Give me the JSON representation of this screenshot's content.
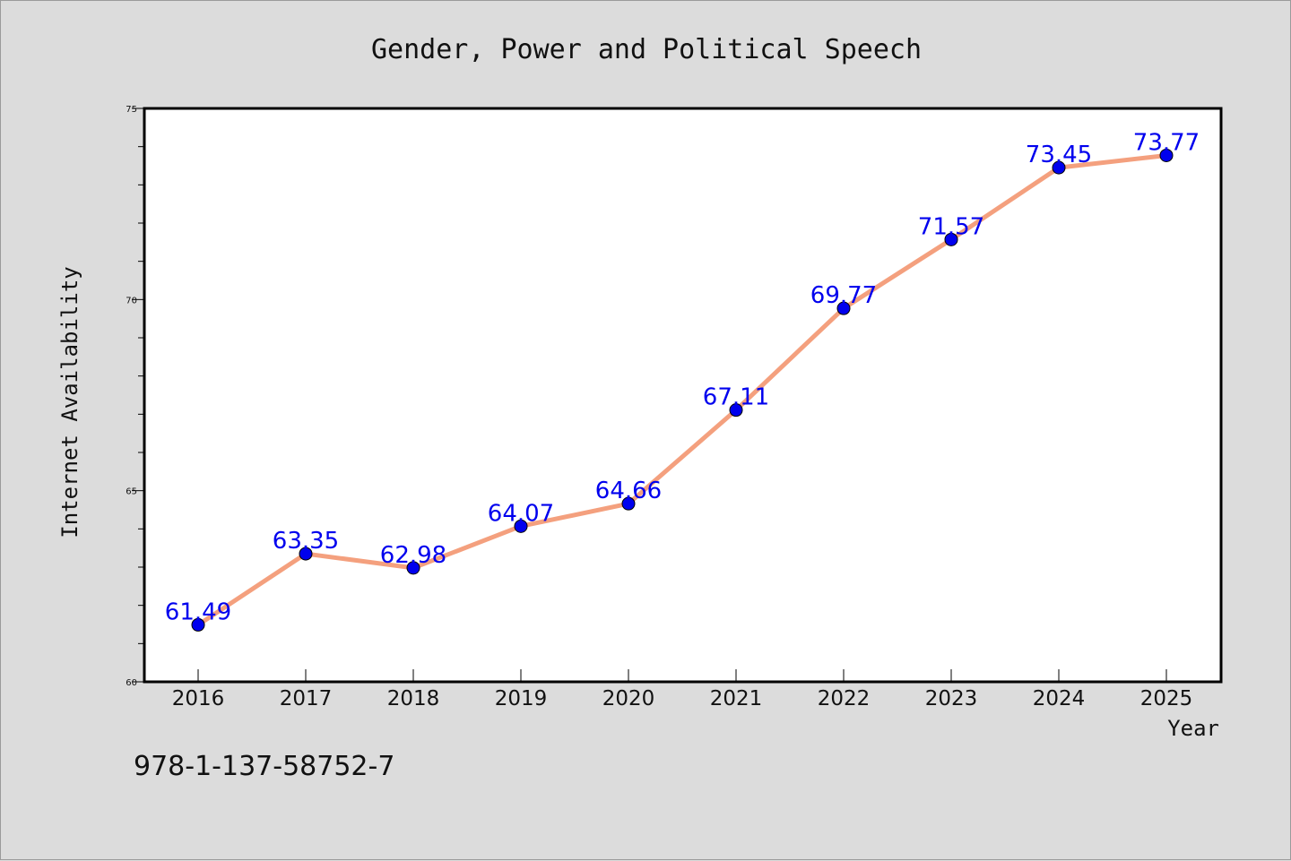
{
  "chart_data": {
    "type": "line",
    "title": "Gender, Power and Political Speech",
    "xlabel": "Year",
    "ylabel": "Internet Availability",
    "categories": [
      "2016",
      "2017",
      "2018",
      "2019",
      "2020",
      "2021",
      "2022",
      "2023",
      "2024",
      "2025"
    ],
    "series": [
      {
        "values": [
          61.49,
          63.35,
          62.98,
          64.07,
          64.66,
          67.11,
          69.77,
          71.57,
          73.45,
          73.77
        ],
        "data_labels": [
          "61.49",
          "63.35",
          "62.98",
          "64.07",
          "64.66",
          "67.11",
          "69.77",
          "71.57",
          "73.45",
          "73.77"
        ],
        "line_color": "#f4a07e",
        "marker_color": "#0000ee",
        "label_color": "#0000ee"
      }
    ],
    "ylim": [
      60,
      75
    ],
    "yticks": [
      "60",
      "65",
      "70",
      "75"
    ],
    "grid": false,
    "legend": "none"
  },
  "footer_text": "978-1-137-58752-7",
  "colors": {
    "background": "#dcdcdc",
    "plot_area": "#ffffff",
    "axes": "#000000"
  }
}
